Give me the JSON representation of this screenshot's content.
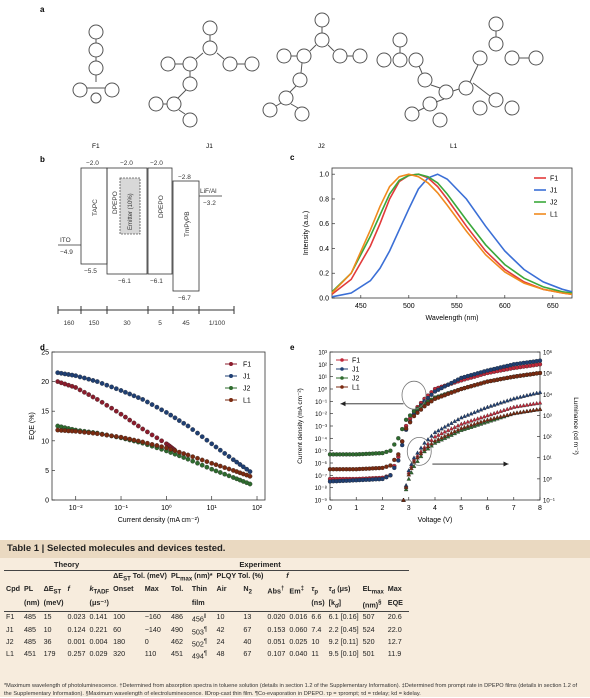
{
  "panel_labels": {
    "a": "a",
    "b": "b",
    "c": "c",
    "d": "d",
    "e": "e"
  },
  "molecules": [
    "F1",
    "J1",
    "J2",
    "L1"
  ],
  "panel_b": {
    "layers": [
      "ITO",
      "TAPC",
      "DPEPO",
      "Emitter (10%)",
      "DPEPO",
      "TmPyPB",
      "LiF/Al"
    ],
    "levels": {
      "tapc_top": "−2.0",
      "dpepo1_top": "−2.0",
      "dpepo2_top": "−2.0",
      "tmpypb_top": "−2.8",
      "ito": "−4.9",
      "lif": "−3.2",
      "tapc_bot": "−5.5",
      "dpepo1_bot": "−6.1",
      "dpepo2_bot": "−6.1",
      "tmpypb_bot": "−6.7"
    },
    "thickness_labels": [
      "160",
      "150",
      "30",
      "5",
      "45",
      "1/100"
    ]
  },
  "chart_data": [
    {
      "type": "line",
      "panel": "c",
      "xlabel": "Wavelength (nm)",
      "ylabel": "Intensity (a.u.)",
      "xlim": [
        420,
        670
      ],
      "ylim": [
        0,
        1.05
      ],
      "xticks": [
        450,
        500,
        550,
        600,
        650
      ],
      "yticks": [
        0.0,
        0.2,
        0.4,
        0.6,
        0.8,
        1.0
      ],
      "legend_position": "top-right",
      "series": [
        {
          "name": "F1",
          "color": "#e23b3b",
          "x": [
            420,
            440,
            460,
            470,
            480,
            490,
            500,
            510,
            520,
            530,
            540,
            560,
            580,
            600,
            620,
            640,
            660,
            670
          ],
          "values": [
            0.03,
            0.15,
            0.42,
            0.6,
            0.8,
            0.94,
            0.99,
            1.0,
            0.97,
            0.9,
            0.8,
            0.58,
            0.38,
            0.23,
            0.13,
            0.07,
            0.04,
            0.03
          ]
        },
        {
          "name": "J1",
          "color": "#3b6fd6",
          "x": [
            420,
            440,
            460,
            470,
            480,
            490,
            500,
            510,
            520,
            530,
            540,
            560,
            580,
            600,
            620,
            640,
            660,
            670
          ],
          "values": [
            0.01,
            0.04,
            0.14,
            0.24,
            0.38,
            0.55,
            0.72,
            0.88,
            0.97,
            1.0,
            0.96,
            0.8,
            0.58,
            0.38,
            0.23,
            0.13,
            0.07,
            0.05
          ]
        },
        {
          "name": "J2",
          "color": "#3ba83b",
          "x": [
            420,
            440,
            460,
            470,
            480,
            490,
            500,
            510,
            520,
            530,
            540,
            560,
            580,
            600,
            620,
            640,
            660,
            670
          ],
          "values": [
            0.05,
            0.2,
            0.5,
            0.67,
            0.84,
            0.95,
            0.99,
            1.0,
            0.98,
            0.93,
            0.84,
            0.63,
            0.43,
            0.27,
            0.16,
            0.09,
            0.05,
            0.04
          ]
        },
        {
          "name": "L1",
          "color": "#f08a1e",
          "x": [
            420,
            440,
            460,
            470,
            480,
            490,
            500,
            510,
            520,
            530,
            540,
            560,
            580,
            600,
            620,
            640,
            660,
            670
          ],
          "values": [
            0.04,
            0.2,
            0.55,
            0.74,
            0.9,
            0.98,
            1.0,
            0.98,
            0.93,
            0.85,
            0.75,
            0.54,
            0.35,
            0.21,
            0.12,
            0.07,
            0.04,
            0.03
          ]
        }
      ]
    },
    {
      "type": "scatter",
      "panel": "d",
      "xlabel": "Current density (mA cm⁻²)",
      "ylabel": "EQE (%)",
      "xscale": "log",
      "xlim": [
        0.003,
        150
      ],
      "ylim": [
        0,
        25
      ],
      "xticks": [
        0.01,
        0.1,
        1,
        10,
        100
      ],
      "xticklabels": [
        "10⁻²",
        "10⁻¹",
        "10⁰",
        "10¹",
        "10²"
      ],
      "yticks": [
        0,
        5,
        10,
        15,
        20,
        25
      ],
      "legend_position": "top-right",
      "series": [
        {
          "name": "F1",
          "color": "#8b1c2c",
          "x": [
            0.004,
            0.01,
            0.03,
            0.1,
            0.3,
            1,
            1.5
          ],
          "values": [
            20,
            19,
            17,
            14.5,
            12,
            9.5,
            8.5
          ]
        },
        {
          "name": "J1",
          "color": "#1f3f73",
          "x": [
            0.004,
            0.01,
            0.03,
            0.1,
            0.3,
            1,
            3,
            10,
            30,
            70
          ],
          "values": [
            21.5,
            21,
            20,
            18.5,
            17,
            14.8,
            12.5,
            9.5,
            6.8,
            4.8
          ]
        },
        {
          "name": "J2",
          "color": "#2e6b2e",
          "x": [
            0.004,
            0.01,
            0.03,
            0.1,
            0.3,
            1,
            3,
            10,
            30,
            70
          ],
          "values": [
            12.5,
            11.8,
            11.3,
            10.5,
            9.6,
            8.3,
            6.9,
            5.2,
            3.8,
            2.7
          ]
        },
        {
          "name": "L1",
          "color": "#7a2a10",
          "x": [
            0.004,
            0.01,
            0.03,
            0.1,
            0.3,
            1,
            3,
            10,
            30,
            70
          ],
          "values": [
            11.8,
            11.6,
            11.2,
            10.6,
            9.8,
            8.8,
            7.6,
            6.2,
            5,
            4
          ]
        }
      ]
    },
    {
      "type": "scatter",
      "panel": "e",
      "xlabel": "Voltage (V)",
      "ylabel": "Current density (mA cm⁻²)",
      "y2label": "Luminance (cd m⁻²)",
      "yscale": "log",
      "xlim": [
        0,
        8
      ],
      "ylim_exp": [
        -9,
        3
      ],
      "y2lim_exp": [
        -1,
        6
      ],
      "xticks": [
        0,
        1,
        2,
        3,
        4,
        5,
        6,
        7,
        8
      ],
      "yticklabels": [
        "10⁻⁹",
        "10⁻⁸",
        "10⁻⁷",
        "10⁻⁶",
        "10⁻⁵",
        "10⁻⁴",
        "10⁻³",
        "10⁻²",
        "10⁻¹",
        "10⁰",
        "10¹",
        "10²",
        "10³"
      ],
      "y2ticklabels": [
        "10⁻¹",
        "10⁰",
        "10¹",
        "10²",
        "10³",
        "10⁴",
        "10⁵",
        "10⁶"
      ],
      "legend_position": "top-left",
      "current_density_exp": [
        {
          "name": "F1",
          "color": "#c0283a",
          "x": [
            0,
            1,
            2,
            2.3,
            2.6,
            2.9,
            3.2,
            3.6,
            4,
            5,
            6,
            7,
            8
          ],
          "values": [
            -7.3,
            -7.3,
            -7.2,
            -7,
            -5.5,
            -3,
            -1.8,
            -0.8,
            0,
            0.7,
            1.3,
            1.7,
            2
          ]
        },
        {
          "name": "J1",
          "color": "#1f3f73",
          "x": [
            0,
            1,
            2,
            2.3,
            2.6,
            2.9,
            3.2,
            3.6,
            4,
            5,
            6,
            7,
            8
          ],
          "values": [
            -7.5,
            -7.4,
            -7.3,
            -7,
            -5.8,
            -3.3,
            -2,
            -1,
            -0.2,
            0.9,
            1.5,
            2,
            2.3
          ]
        },
        {
          "name": "J2",
          "color": "#2e6b2e",
          "x": [
            0,
            1,
            2,
            2.3,
            2.6,
            2.9,
            3.2,
            3.6,
            4,
            5,
            6,
            7,
            8
          ],
          "values": [
            -5.3,
            -5.3,
            -5.2,
            -5,
            -4,
            -2.5,
            -1.8,
            -1.2,
            -0.7,
            0,
            0.6,
            1,
            1.3
          ]
        },
        {
          "name": "L1",
          "color": "#7a2a10",
          "x": [
            0,
            1,
            2,
            2.3,
            2.6,
            2.9,
            3.2,
            3.6,
            4,
            5,
            6,
            7,
            8
          ],
          "values": [
            -6.5,
            -6.5,
            -6.4,
            -6.2,
            -5.3,
            -3.2,
            -2.2,
            -1.4,
            -0.8,
            0,
            0.6,
            1,
            1.3
          ]
        }
      ],
      "luminance_exp": [
        {
          "name": "F1",
          "color": "#c0283a",
          "x": [
            2.8,
            3,
            3.2,
            3.6,
            4,
            5,
            6,
            7,
            8
          ],
          "values": [
            -1,
            0.3,
            0.9,
            1.5,
            2,
            2.6,
            3,
            3.4,
            3.6
          ]
        },
        {
          "name": "J1",
          "color": "#1f3f73",
          "x": [
            2.8,
            3,
            3.2,
            3.6,
            4,
            5,
            6,
            7,
            8
          ],
          "values": [
            -1,
            0.4,
            1,
            1.7,
            2.2,
            2.9,
            3.4,
            3.8,
            4.1
          ]
        },
        {
          "name": "J2",
          "color": "#2e6b2e",
          "x": [
            2.8,
            3,
            3.2,
            3.6,
            4,
            5,
            6,
            7,
            8
          ],
          "values": [
            -1,
            0,
            0.6,
            1.3,
            1.7,
            2.3,
            2.7,
            3.1,
            3.3
          ]
        },
        {
          "name": "L1",
          "color": "#7a2a10",
          "x": [
            2.8,
            3,
            3.2,
            3.6,
            4,
            5,
            6,
            7,
            8
          ],
          "values": [
            -1,
            0.2,
            0.8,
            1.4,
            1.8,
            2.4,
            2.8,
            3.1,
            3.3
          ]
        }
      ]
    }
  ],
  "table": {
    "title": "Table 1 | Selected molecules and devices tested.",
    "group_theory": "Theory",
    "group_experiment": "Experiment",
    "sub_headers": {
      "dest_tol": "ΔE",
      "dest_tol_sub": "ST",
      "dest_tol_rest": " Tol. (meV)",
      "pl_max": "PL",
      "pl_max_sub": "max",
      "pl_max_rest": " (nm)*",
      "plqy": "PLQY Tol. (%)",
      "f": "f"
    },
    "headers": {
      "cpd": "Cpd",
      "pl": "PL",
      "pl2": "(nm)",
      "dest": "ΔE",
      "dest_sub": "ST",
      "dest2": "(meV)",
      "f": "f",
      "k": "k",
      "k_sub": "TADF",
      "k2": "(μs⁻¹)",
      "onset": "Onset",
      "max": "Max",
      "tol": "Tol.",
      "thin": "Thin",
      "thin2": "film",
      "air": "Air",
      "n2": "N",
      "n2_sub": "2",
      "abs": "Abs",
      "abs_sup": "†",
      "em": "Em",
      "em_sup": "‡",
      "taup": "τ",
      "taup_sub": "p",
      "taup2": "(ns)",
      "taud": "τ",
      "taud_sub": "d",
      "taud_rest": " (μs)",
      "taud2": "[k",
      "taud2_sub": "d",
      "taud2_end": "]",
      "el": "EL",
      "el_sub": "max",
      "el2": "(nm)",
      "el2_sup": "§",
      "maxeqe": "Max",
      "maxeqe2": "EQE"
    },
    "rows": [
      [
        "F1",
        "485",
        "15",
        "0.023",
        "0.141",
        "100",
        "−160",
        "486",
        "456",
        "‖",
        "10",
        "13",
        "0.020",
        "0.016",
        "6.6",
        "6.1 [0.16]",
        "507",
        "20.6"
      ],
      [
        "J1",
        "485",
        "10",
        "0.124",
        "0.221",
        "60",
        "−140",
        "490",
        "503",
        "¶",
        "42",
        "67",
        "0.153",
        "0.060",
        "7.4",
        "2.2 [0.45]",
        "524",
        "22.0"
      ],
      [
        "J2",
        "485",
        "36",
        "0.001",
        "0.004",
        "180",
        "0",
        "462",
        "502",
        "¶",
        "24",
        "40",
        "0.051",
        "0.025",
        "10",
        "9.2 [0.11]",
        "520",
        "12.7"
      ],
      [
        "L1",
        "451",
        "179",
        "0.257",
        "0.029",
        "320",
        "110",
        "451",
        "494",
        "¶",
        "48",
        "67",
        "0.107",
        "0.040",
        "11",
        "9.5 [0.10]",
        "501",
        "11.9"
      ]
    ],
    "footnote": "*Maximum wavelength of photoluminescence. †Determined from absorption spectra in toluene solution (details in section 1.2 of the Supplementary Information). ‡Determined from prompt rate in DPEPO films (details in section 1.2 of the Supplementary Information). §Maximum wavelength of electroluminescence. ‖Drop-cast thin film. ¶Co-evaporation in DPEPO. τp = τprompt; τd = τdelay; kd = kdelay."
  }
}
